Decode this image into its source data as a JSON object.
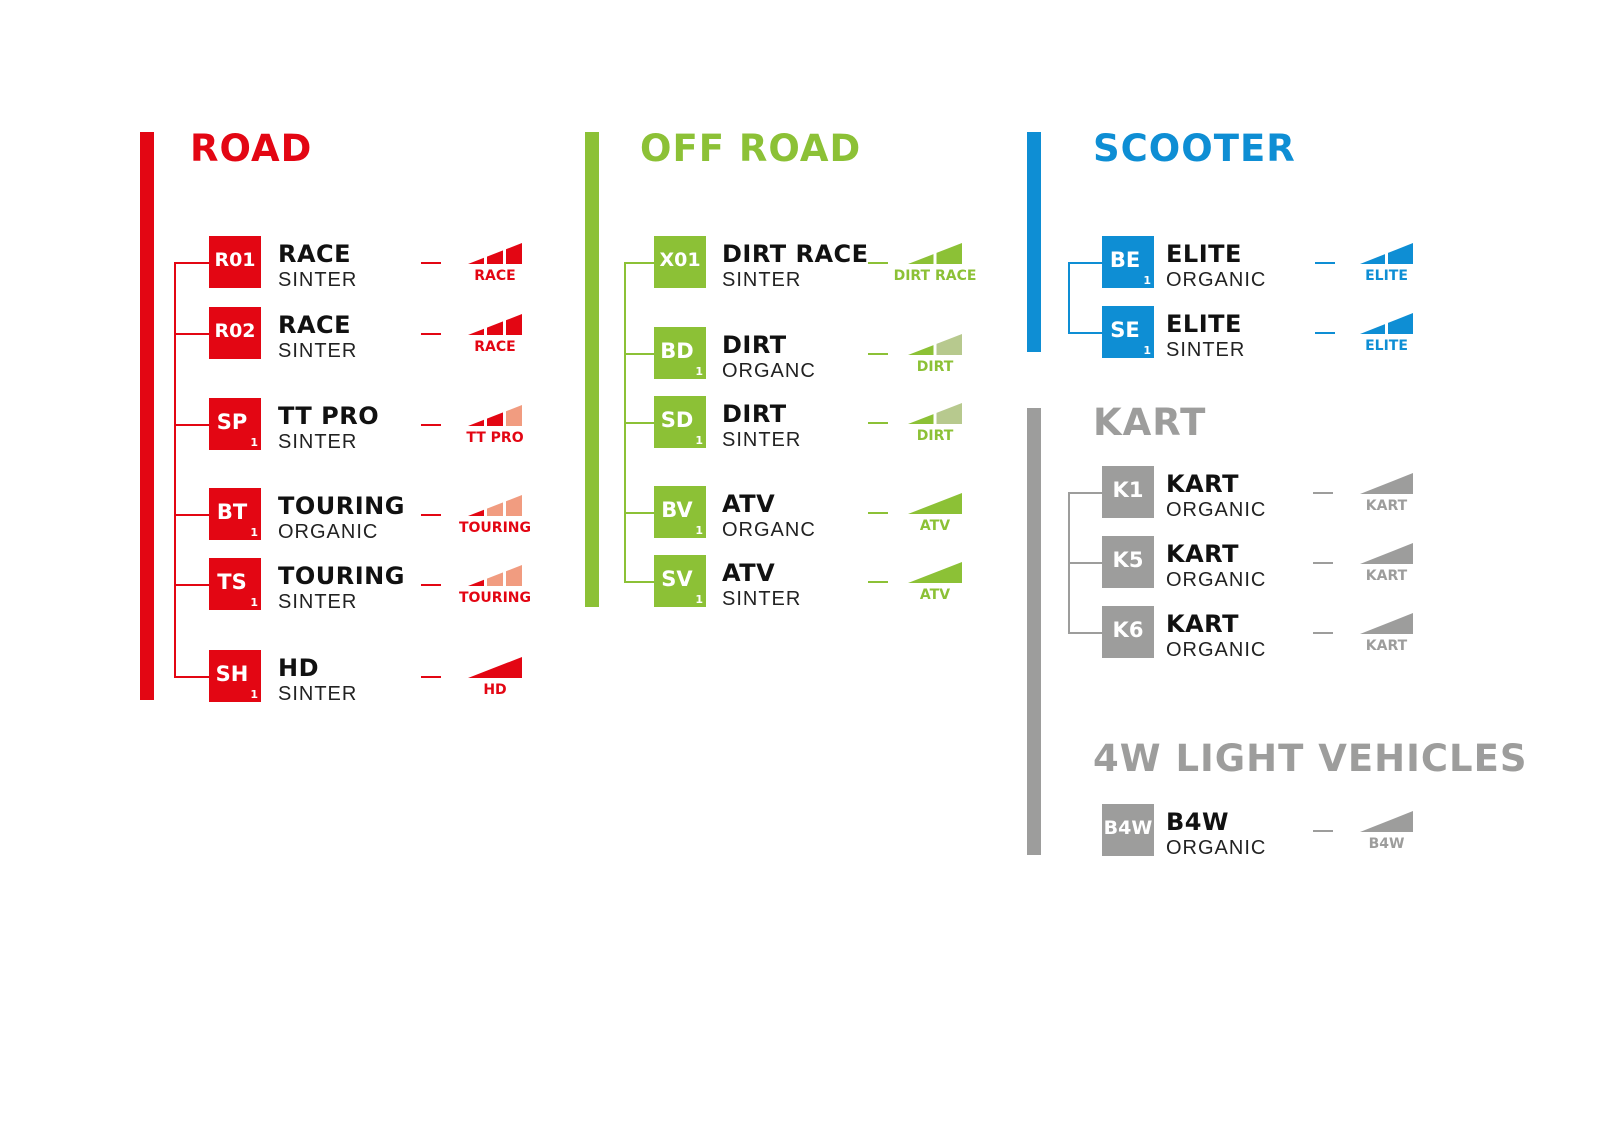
{
  "colors": {
    "road": "#e30613",
    "road_light": "#f19c80",
    "offroad": "#8cc136",
    "offroad_light": "#b7c98e",
    "scooter": "#0e8ed4",
    "kart": "#9d9d9c"
  },
  "groups": [
    {
      "id": "road",
      "title": "ROAD",
      "color": "#e30613",
      "light": "#f19c80",
      "items": [
        {
          "code": "R01",
          "sub": "",
          "name": "RACE",
          "material": "SINTER",
          "level": "RACE",
          "segments": [
            "full",
            "full",
            "full"
          ]
        },
        {
          "code": "R02",
          "sub": "",
          "name": "RACE",
          "material": "SINTER",
          "level": "RACE",
          "segments": [
            "full",
            "full",
            "full"
          ]
        },
        {
          "code": "SP",
          "sub": "1",
          "name": "TT PRO",
          "material": "SINTER",
          "level": "TT PRO",
          "segments": [
            "full",
            "full",
            "light"
          ]
        },
        {
          "code": "BT",
          "sub": "1",
          "name": "TOURING",
          "material": "ORGANIC",
          "level": "TOURING",
          "segments": [
            "full",
            "light",
            "light"
          ]
        },
        {
          "code": "TS",
          "sub": "1",
          "name": "TOURING",
          "material": "SINTER",
          "level": "TOURING",
          "segments": [
            "full",
            "light",
            "light"
          ]
        },
        {
          "code": "SH",
          "sub": "1",
          "name": "HD",
          "material": "SINTER",
          "level": "HD",
          "segments": [
            "full"
          ]
        }
      ]
    },
    {
      "id": "offroad",
      "title": "OFF ROAD",
      "color": "#8cc136",
      "light": "#b7c98e",
      "items": [
        {
          "code": "X01",
          "sub": "",
          "name": "DIRT RACE",
          "material": "SINTER",
          "level": "DIRT RACE",
          "segments": [
            "full",
            "full"
          ]
        },
        {
          "code": "BD",
          "sub": "1",
          "name": "DIRT",
          "material": "ORGANC",
          "level": "DIRT",
          "segments": [
            "full",
            "light"
          ]
        },
        {
          "code": "SD",
          "sub": "1",
          "name": "DIRT",
          "material": "SINTER",
          "level": "DIRT",
          "segments": [
            "full",
            "light"
          ]
        },
        {
          "code": "BV",
          "sub": "1",
          "name": "ATV",
          "material": "ORGANC",
          "level": "ATV",
          "segments": [
            "full"
          ]
        },
        {
          "code": "SV",
          "sub": "1",
          "name": "ATV",
          "material": "SINTER",
          "level": "ATV",
          "segments": [
            "full"
          ]
        }
      ]
    },
    {
      "id": "scooter",
      "title": "SCOOTER",
      "color": "#0e8ed4",
      "light": "#0e8ed4",
      "items": [
        {
          "code": "BE",
          "sub": "1",
          "name": "ELITE",
          "material": "ORGANIC",
          "level": "ELITE",
          "segments": [
            "full",
            "full"
          ]
        },
        {
          "code": "SE",
          "sub": "1",
          "name": "ELITE",
          "material": "SINTER",
          "level": "ELITE",
          "segments": [
            "full",
            "full"
          ]
        }
      ]
    },
    {
      "id": "kart",
      "title": "KART",
      "color": "#9d9d9c",
      "light": "#9d9d9c",
      "items": [
        {
          "code": "K1",
          "sub": "",
          "name": "KART",
          "material": "ORGANIC",
          "level": "KART",
          "segments": [
            "full"
          ]
        },
        {
          "code": "K5",
          "sub": "",
          "name": "KART",
          "material": "ORGANIC",
          "level": "KART",
          "segments": [
            "full"
          ]
        },
        {
          "code": "K6",
          "sub": "",
          "name": "KART",
          "material": "ORGANIC",
          "level": "KART",
          "segments": [
            "full"
          ]
        }
      ]
    },
    {
      "id": "light4w",
      "title": "4W LIGHT VEHICLES",
      "color": "#9d9d9c",
      "light": "#9d9d9c",
      "items": [
        {
          "code": "B4W",
          "sub": "",
          "name": "B4W",
          "material": "ORGANIC",
          "level": "B4W",
          "segments": [
            "full"
          ]
        }
      ]
    }
  ]
}
